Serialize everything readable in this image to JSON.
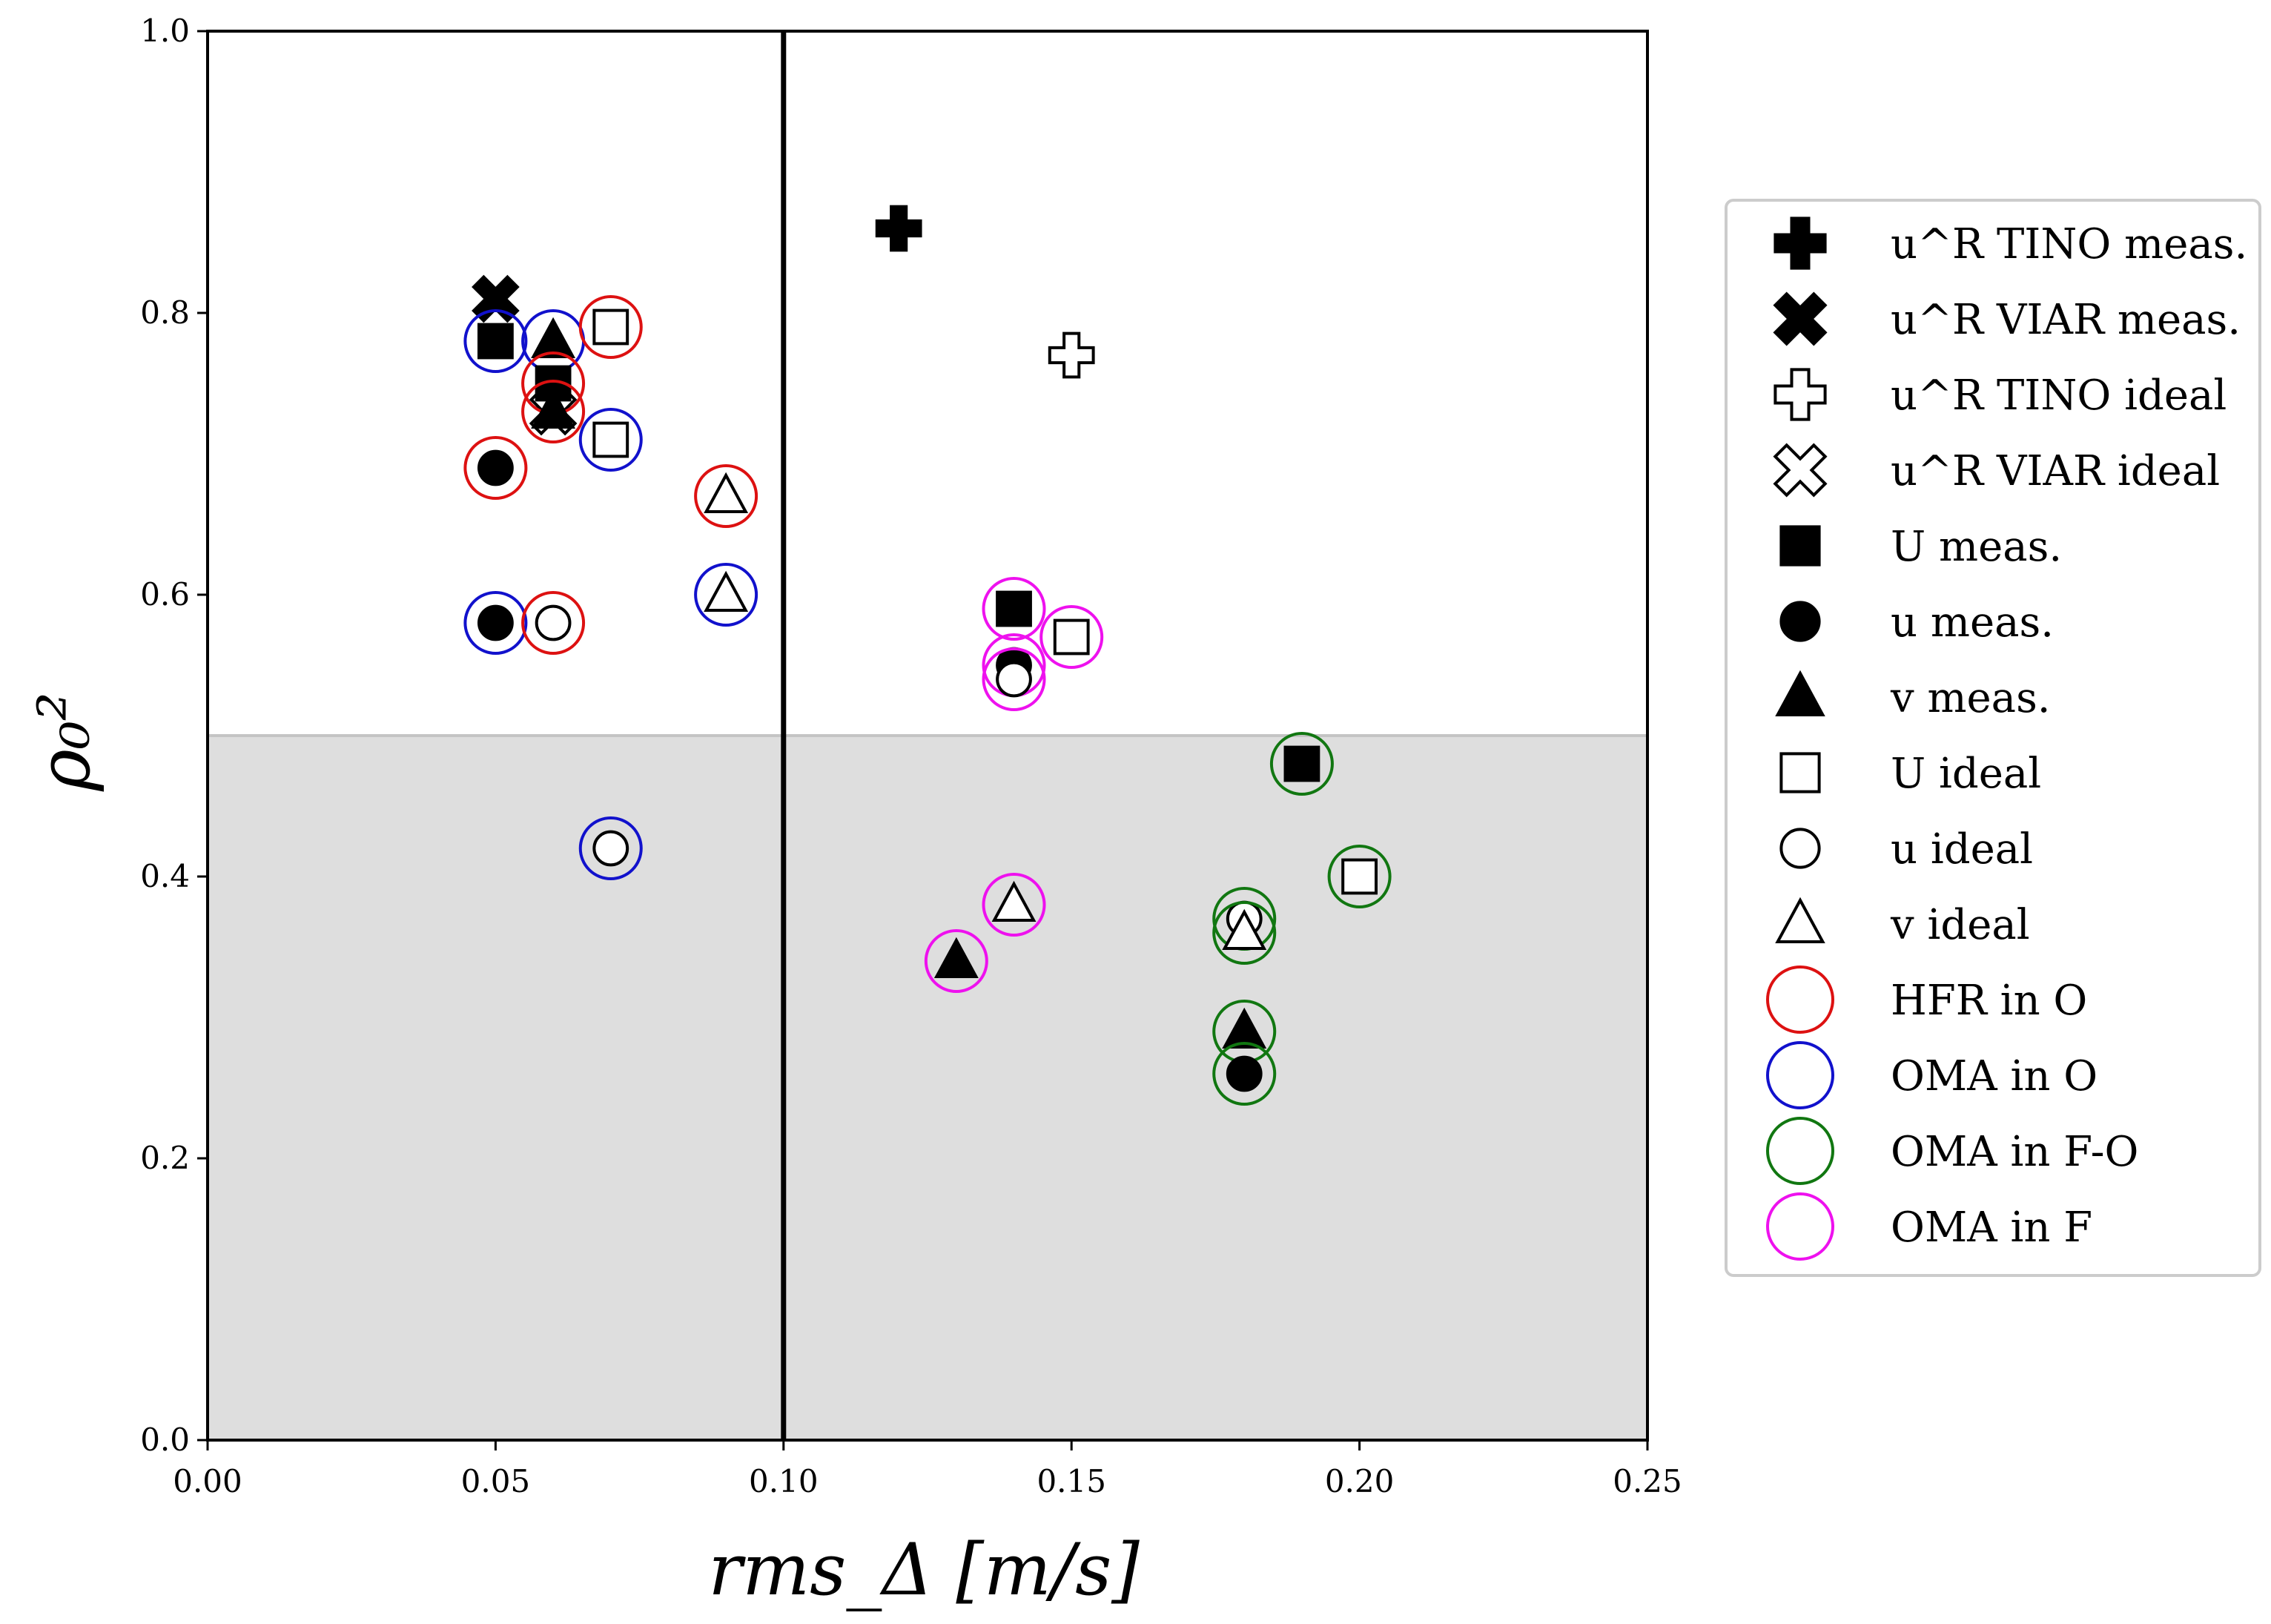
{
  "chart_data": {
    "type": "scatter",
    "xlabel": "rms_Δ [m/s]",
    "ylabel": "ρ₀²",
    "xlim": [
      0.0,
      0.25
    ],
    "ylim": [
      0.0,
      1.0
    ],
    "x_ticks": [
      "0.00",
      "0.05",
      "0.10",
      "0.15",
      "0.20",
      "0.25"
    ],
    "y_ticks": [
      "0.0",
      "0.2",
      "0.4",
      "0.6",
      "0.8",
      "1.0"
    ],
    "shaded_region": {
      "y_from": 0.0,
      "y_to": 0.5,
      "color": "#dedede"
    },
    "threshold_line_x": 0.1,
    "legend": [
      {
        "key": "tino_meas",
        "label": "u^R TINO meas."
      },
      {
        "key": "viar_meas",
        "label": "u^R VIAR meas."
      },
      {
        "key": "tino_ideal",
        "label": "u^R TINO ideal"
      },
      {
        "key": "viar_ideal",
        "label": "u^R VIAR ideal"
      },
      {
        "key": "U_meas",
        "label": "U meas."
      },
      {
        "key": "u_meas",
        "label": "u meas."
      },
      {
        "key": "v_meas",
        "label": "v meas."
      },
      {
        "key": "U_ideal",
        "label": "U ideal"
      },
      {
        "key": "u_ideal",
        "label": "u ideal"
      },
      {
        "key": "v_ideal",
        "label": "v ideal"
      },
      {
        "key": "HFR_O",
        "label": "HFR in O"
      },
      {
        "key": "OMA_O",
        "label": "OMA in O"
      },
      {
        "key": "OMA_FO",
        "label": "OMA in F-O"
      },
      {
        "key": "OMA_F",
        "label": "OMA in F"
      }
    ],
    "ring_colors": {
      "HFR_O": "#dd1111",
      "OMA_O": "#1111cc",
      "OMA_FO": "#117711",
      "OMA_F": "#ee11ee"
    },
    "points": [
      {
        "x": 0.12,
        "y": 0.86,
        "marker": "tino_meas",
        "ring": null
      },
      {
        "x": 0.15,
        "y": 0.77,
        "marker": "tino_ideal",
        "ring": null
      },
      {
        "x": 0.05,
        "y": 0.81,
        "marker": "viar_meas",
        "ring": null
      },
      {
        "x": 0.06,
        "y": 0.73,
        "marker": "viar_ideal",
        "ring": null
      },
      {
        "x": 0.05,
        "y": 0.78,
        "marker": "U_meas",
        "ring": "OMA_O"
      },
      {
        "x": 0.06,
        "y": 0.78,
        "marker": "v_meas",
        "ring": "OMA_O"
      },
      {
        "x": 0.07,
        "y": 0.79,
        "marker": "U_ideal",
        "ring": "HFR_O"
      },
      {
        "x": 0.06,
        "y": 0.75,
        "marker": "U_meas",
        "ring": "HFR_O"
      },
      {
        "x": 0.06,
        "y": 0.73,
        "marker": "v_meas",
        "ring": "HFR_O"
      },
      {
        "x": 0.07,
        "y": 0.71,
        "marker": "U_ideal",
        "ring": "OMA_O"
      },
      {
        "x": 0.05,
        "y": 0.69,
        "marker": "u_meas",
        "ring": "HFR_O"
      },
      {
        "x": 0.09,
        "y": 0.67,
        "marker": "v_ideal",
        "ring": "HFR_O"
      },
      {
        "x": 0.09,
        "y": 0.6,
        "marker": "v_ideal",
        "ring": "OMA_O"
      },
      {
        "x": 0.05,
        "y": 0.58,
        "marker": "u_meas",
        "ring": "OMA_O"
      },
      {
        "x": 0.06,
        "y": 0.58,
        "marker": "u_ideal",
        "ring": "HFR_O"
      },
      {
        "x": 0.07,
        "y": 0.42,
        "marker": "u_ideal",
        "ring": "OMA_O"
      },
      {
        "x": 0.14,
        "y": 0.59,
        "marker": "U_meas",
        "ring": "OMA_F"
      },
      {
        "x": 0.15,
        "y": 0.57,
        "marker": "U_ideal",
        "ring": "OMA_F"
      },
      {
        "x": 0.14,
        "y": 0.55,
        "marker": "u_meas",
        "ring": "OMA_F"
      },
      {
        "x": 0.14,
        "y": 0.54,
        "marker": "u_ideal",
        "ring": "OMA_F"
      },
      {
        "x": 0.14,
        "y": 0.38,
        "marker": "v_ideal",
        "ring": "OMA_F"
      },
      {
        "x": 0.13,
        "y": 0.34,
        "marker": "v_meas",
        "ring": "OMA_F"
      },
      {
        "x": 0.19,
        "y": 0.48,
        "marker": "U_meas",
        "ring": "OMA_FO"
      },
      {
        "x": 0.2,
        "y": 0.4,
        "marker": "U_ideal",
        "ring": "OMA_FO"
      },
      {
        "x": 0.18,
        "y": 0.37,
        "marker": "u_ideal",
        "ring": "OMA_FO"
      },
      {
        "x": 0.18,
        "y": 0.36,
        "marker": "v_ideal",
        "ring": "OMA_FO"
      },
      {
        "x": 0.18,
        "y": 0.29,
        "marker": "v_meas",
        "ring": "OMA_FO"
      },
      {
        "x": 0.18,
        "y": 0.26,
        "marker": "u_meas",
        "ring": "OMA_FO"
      }
    ]
  }
}
